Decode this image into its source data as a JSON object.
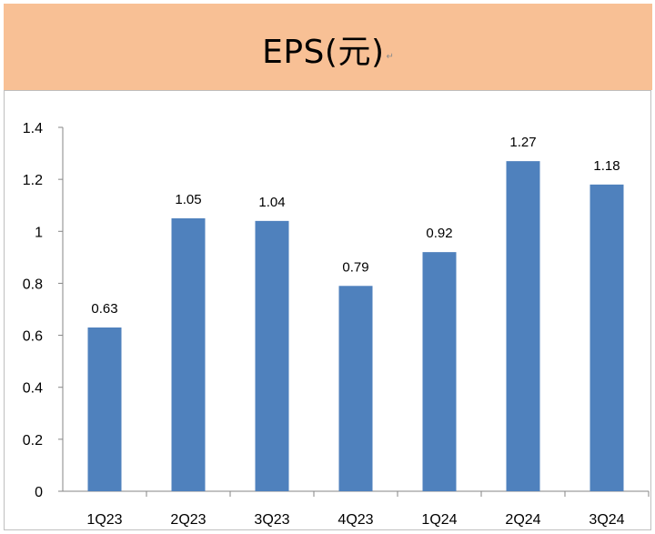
{
  "title": "EPS(元)",
  "colors": {
    "title_bg": "#f8c095",
    "bar": "#4f81bd"
  },
  "chart_data": {
    "type": "bar",
    "title": "EPS(元)",
    "xlabel": "",
    "ylabel": "",
    "categories": [
      "1Q23",
      "2Q23",
      "3Q23",
      "4Q23",
      "1Q24",
      "2Q24",
      "3Q24"
    ],
    "values": [
      0.63,
      1.05,
      1.04,
      0.79,
      0.92,
      1.27,
      1.18
    ],
    "value_labels": [
      "0.63",
      "1.05",
      "1.04",
      "0.79",
      "0.92",
      "1.27",
      "1.18"
    ],
    "ylim": [
      0,
      1.4
    ],
    "yticks": [
      "0",
      "0.2",
      "0.4",
      "0.6",
      "0.8",
      "1",
      "1.2",
      "1.4"
    ],
    "grid": false,
    "legend": "none"
  }
}
